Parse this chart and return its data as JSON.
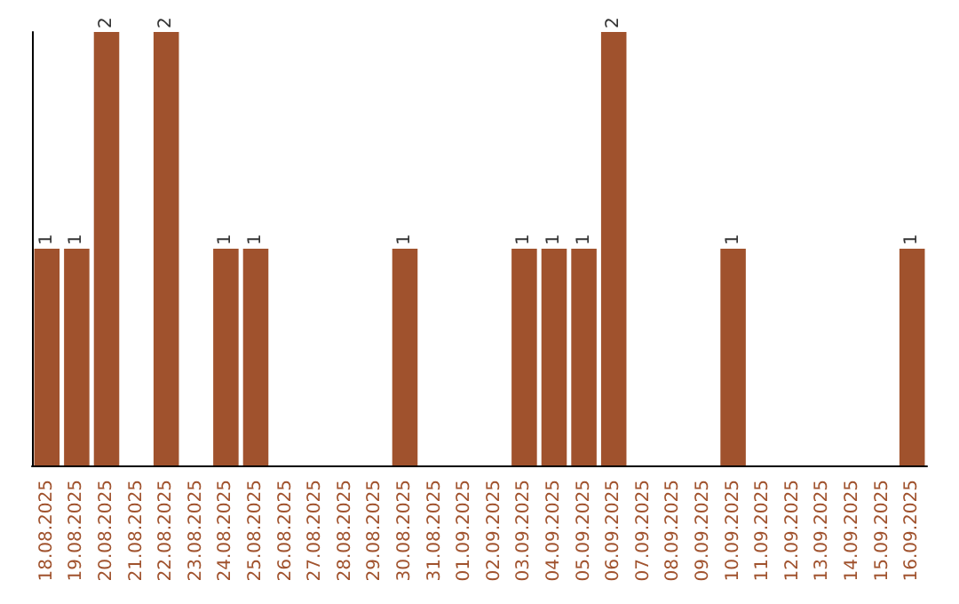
{
  "chart_data": {
    "type": "bar",
    "categories": [
      "18.08.2025",
      "19.08.2025",
      "20.08.2025",
      "21.08.2025",
      "22.08.2025",
      "23.08.2025",
      "24.08.2025",
      "25.08.2025",
      "26.08.2025",
      "27.08.2025",
      "28.08.2025",
      "29.08.2025",
      "30.08.2025",
      "31.08.2025",
      "01.09.2025",
      "02.09.2025",
      "03.09.2025",
      "04.09.2025",
      "05.09.2025",
      "06.09.2025",
      "07.09.2025",
      "08.09.2025",
      "09.09.2025",
      "10.09.2025",
      "11.09.2025",
      "12.09.2025",
      "13.09.2025",
      "14.09.2025",
      "15.09.2025",
      "16.09.2025"
    ],
    "values": [
      1,
      1,
      2,
      0,
      2,
      0,
      1,
      1,
      0,
      0,
      0,
      0,
      1,
      0,
      0,
      0,
      1,
      1,
      1,
      2,
      0,
      0,
      0,
      1,
      0,
      0,
      0,
      0,
      0,
      1
    ],
    "value_labels": [
      "1",
      "1",
      "2",
      null,
      "2",
      null,
      "1",
      "1",
      null,
      null,
      null,
      null,
      "1",
      null,
      null,
      null,
      "1",
      "1",
      "1",
      "2",
      null,
      null,
      null,
      "1",
      null,
      null,
      null,
      null,
      null,
      "1"
    ],
    "color": "#a0522d",
    "tick_labels": "x"
  }
}
